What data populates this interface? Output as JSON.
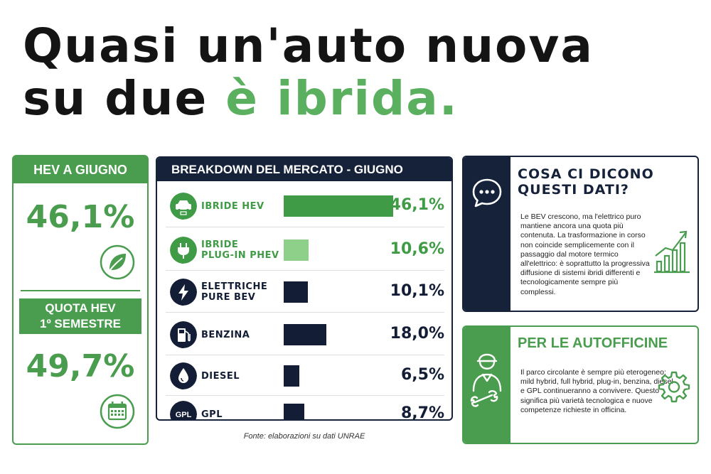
{
  "headline": {
    "line1": "Quasi un'auto nuova",
    "line2_start": "su due ",
    "line2_green": "è ibrida."
  },
  "left": {
    "hev_label": "HEV A GIUGNO",
    "hev_value": "46,1%",
    "quota_label_1": "QUOTA HEV",
    "quota_label_2": "1º SEMESTRE",
    "quota_value": "49,7%"
  },
  "chart_data": {
    "type": "bar",
    "title": "BREAKDOWN DEL MERCATO - GIUGNO",
    "categories": [
      "IBRIDE HEV",
      "IBRIDE PLUG-IN PHEV",
      "ELETTRICHE PURE BEV",
      "BENZINA",
      "DIESEL",
      "GPL"
    ],
    "values": [
      46.1,
      10.6,
      10.1,
      18.0,
      6.5,
      8.7
    ],
    "value_labels": [
      "46,1%",
      "10,6%",
      "10,1%",
      "18,0%",
      "6,5%",
      "8,7%"
    ],
    "label_lines": [
      [
        "IBRIDE HEV"
      ],
      [
        "IBRIDE",
        "PLUG-IN PHEV"
      ],
      [
        "ELETTRICHE",
        "PURE BEV"
      ],
      [
        "BENZINA"
      ],
      [
        "DIESEL"
      ],
      [
        "GPL"
      ]
    ],
    "colors": {
      "hev": "#3f9b45",
      "phev": "#8ed08a",
      "other": "#131e36"
    }
  },
  "source": "Fonte: elaborazioni su dati UNRAE",
  "insight": {
    "title_1": "COSA CI DICONO",
    "title_2": "QUESTI DATI?",
    "text": "Le BEV crescono, ma l'elettrico puro mantiene ancora una quota più contenuta. La trasformazione in corso non coincide semplicemente con il passaggio dal motore termico all'elettrico: è soprattutto la progressiva diffusione di sistemi ibridi differenti e tecnologicamente sempre più complessi."
  },
  "workshop": {
    "title": "PER LE AUTOFFICINE",
    "text": "Il parco circolante è sempre più eterogeneo: mild hybrid, full hybrid, plug-in, benzina, diesel e GPL continueranno a convivere. Questo significa più varietà tecnologica e nuove competenze richieste in officina."
  },
  "icons": {
    "gpl_text": "GPL"
  }
}
